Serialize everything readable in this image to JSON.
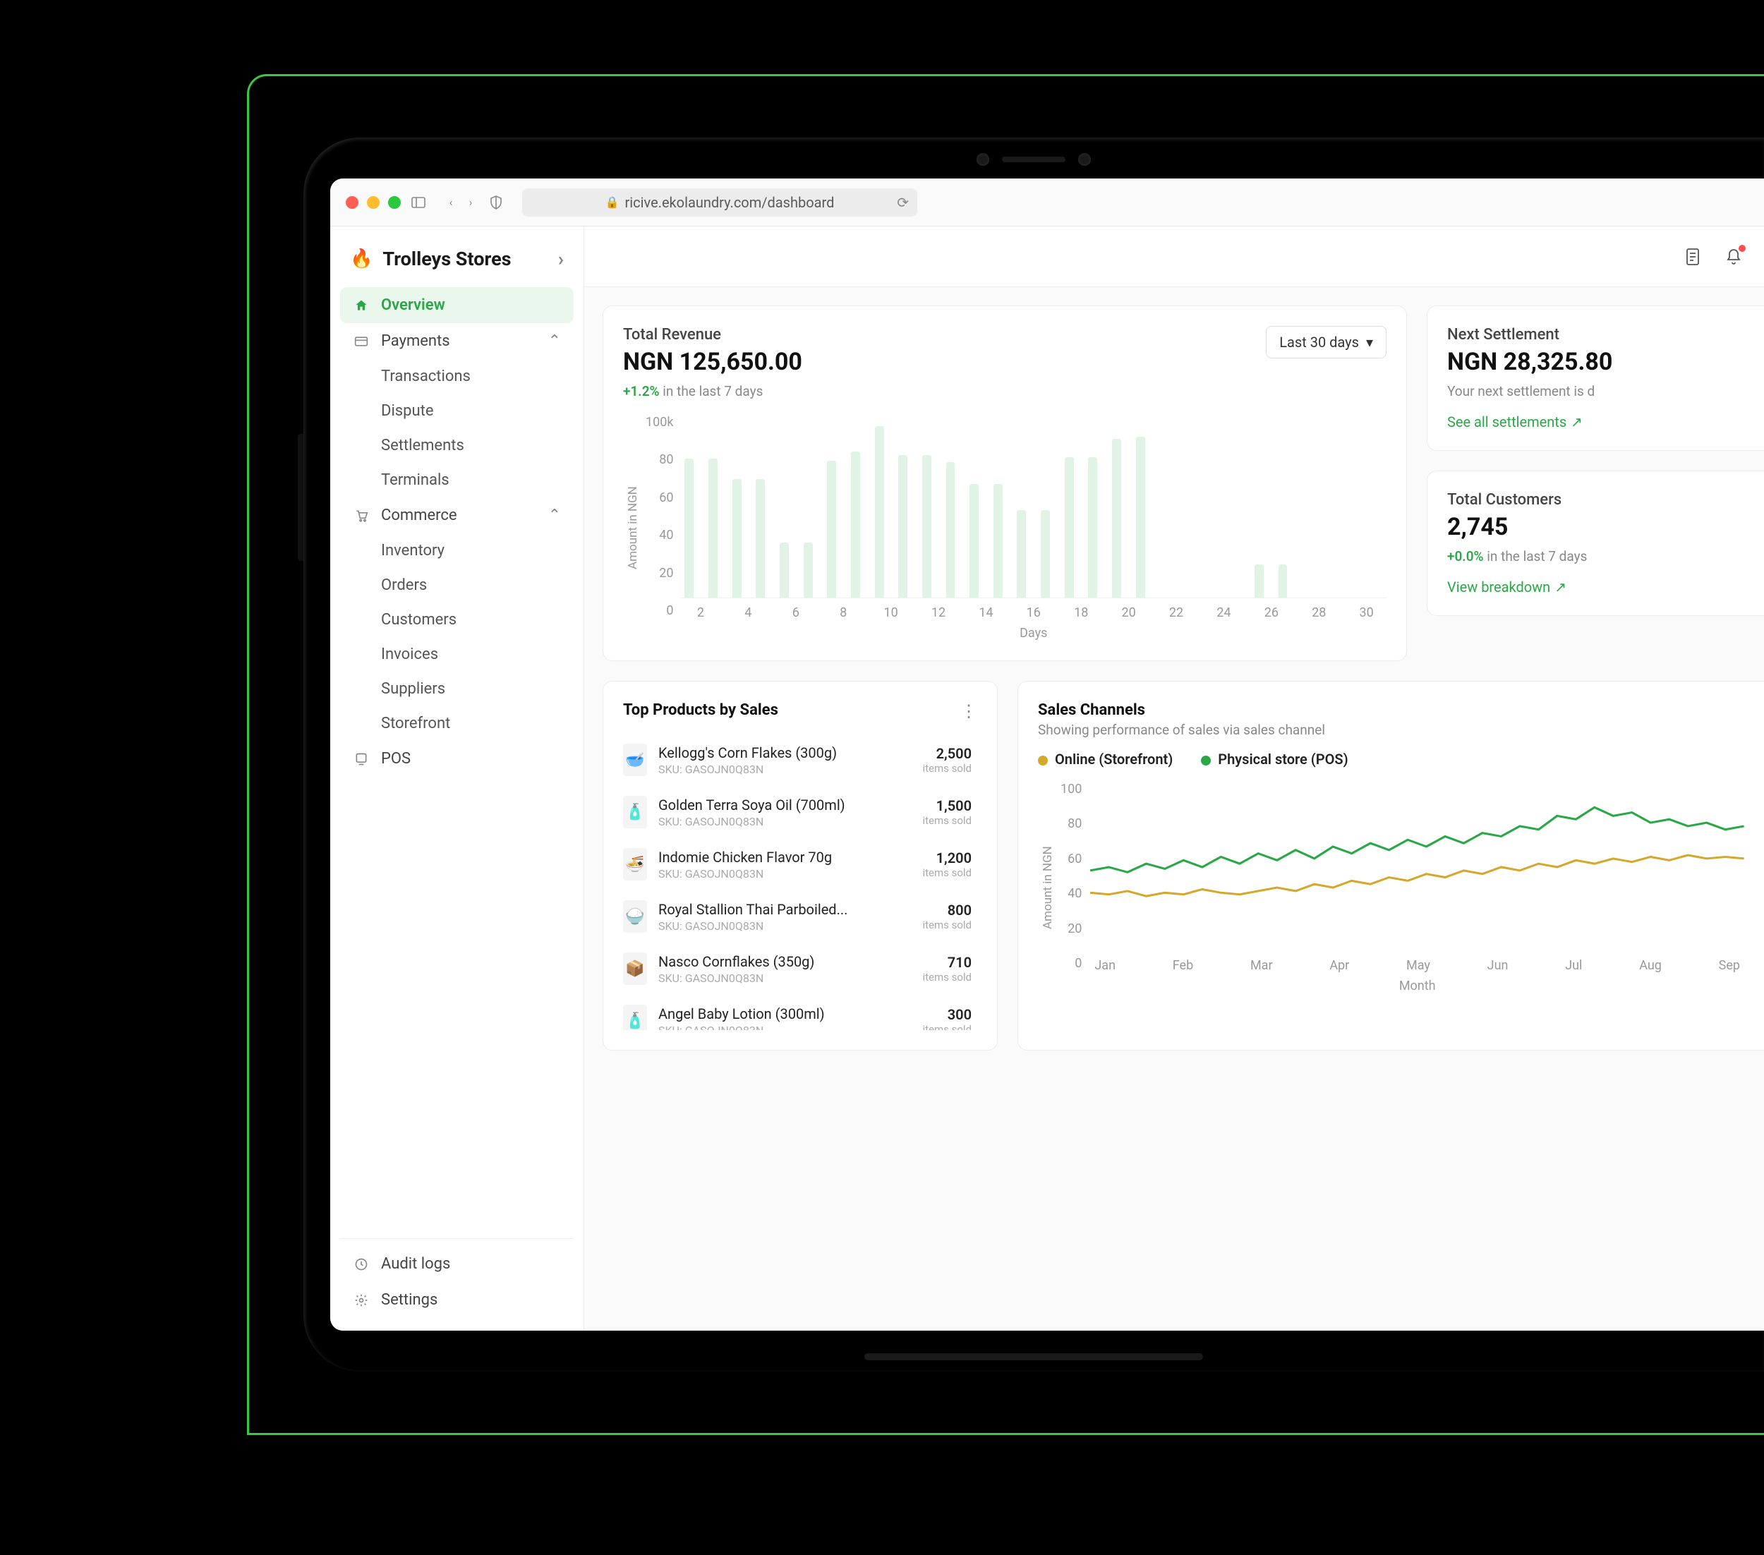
{
  "browser": {
    "url": "ricive.ekolaundry.com/dashboard"
  },
  "brand": {
    "name": "Trolleys Stores"
  },
  "sidebar": {
    "overview": "Overview",
    "payments": {
      "label": "Payments",
      "items": [
        "Transactions",
        "Dispute",
        "Settlements",
        "Terminals"
      ]
    },
    "commerce": {
      "label": "Commerce",
      "items": [
        "Inventory",
        "Orders",
        "Customers",
        "Invoices",
        "Suppliers",
        "Storefront"
      ]
    },
    "pos": "POS",
    "audit": "Audit logs",
    "settings": "Settings"
  },
  "revenue": {
    "title": "Total Revenue",
    "value": "NGN 125,650.00",
    "delta": "+1.2%",
    "delta_suffix": " in the last 7 days",
    "period": "Last 30 days",
    "ylabel": "Amount in NGN",
    "xlabel": "Days",
    "yticks": [
      "100k",
      "80",
      "60",
      "40",
      "20",
      "0"
    ],
    "xticks": [
      "2",
      "4",
      "6",
      "8",
      "10",
      "12",
      "14",
      "16",
      "18",
      "20",
      "22",
      "24",
      "26",
      "28",
      "30"
    ],
    "bars": [
      76,
      76,
      65,
      65,
      30,
      30,
      75,
      80,
      94,
      78,
      78,
      74,
      62,
      62,
      48,
      48,
      77,
      77,
      87,
      88,
      0,
      0,
      0,
      0,
      18,
      18,
      0,
      0,
      0,
      0
    ],
    "ylim": 100,
    "bar_color": "#e1f3e4"
  },
  "settlement": {
    "title": "Next Settlement",
    "value": "NGN 28,325.80",
    "desc": "Your next settlement is d",
    "link": "See all settlements"
  },
  "customers": {
    "title": "Total Customers",
    "value": "2,745",
    "delta": "+0.0%",
    "delta_suffix": " in the last 7 days",
    "link": "View breakdown"
  },
  "top_products": {
    "title": "Top Products by Sales",
    "sku_prefix": "SKU: GASOJN0Q83N",
    "unit": "items sold",
    "items": [
      {
        "name": "Kellogg's Corn Flakes (300g)",
        "qty": "2,500",
        "emoji": "🥣"
      },
      {
        "name": "Golden Terra Soya Oil (700ml)",
        "qty": "1,500",
        "emoji": "🧴"
      },
      {
        "name": "Indomie Chicken Flavor 70g",
        "qty": "1,200",
        "emoji": "🍜"
      },
      {
        "name": "Royal Stallion Thai Parboiled...",
        "qty": "800",
        "emoji": "🍚"
      },
      {
        "name": "Nasco Cornflakes (350g)",
        "qty": "710",
        "emoji": "📦"
      },
      {
        "name": "Angel Baby Lotion (300ml)",
        "qty": "300",
        "emoji": "🧴"
      }
    ]
  },
  "channels": {
    "title": "Sales Channels",
    "subtitle": "Showing performance of sales via sales channel",
    "legend": {
      "online": "Online (Storefront)",
      "physical": "Physical store (POS)"
    },
    "ylabel": "Amount in NGN",
    "xlabel": "Month",
    "yticks": [
      "100",
      "80",
      "60",
      "40",
      "20",
      "0"
    ],
    "xticks": [
      "Jan",
      "Feb",
      "Mar",
      "Apr",
      "May",
      "Jun",
      "Jul",
      "Aug",
      "Sep"
    ],
    "colors": {
      "online": "#d4a82c",
      "physical": "#2aa746"
    },
    "ylim": 100,
    "online_series": [
      35,
      34,
      36,
      33,
      35,
      34,
      37,
      35,
      34,
      36,
      38,
      36,
      40,
      38,
      42,
      40,
      44,
      42,
      46,
      44,
      48,
      46,
      50,
      48,
      52,
      50,
      54,
      52,
      55,
      53,
      56,
      54,
      57,
      55,
      56,
      55
    ],
    "physical_series": [
      48,
      50,
      47,
      52,
      49,
      54,
      50,
      56,
      52,
      58,
      54,
      60,
      55,
      62,
      58,
      64,
      60,
      66,
      62,
      68,
      64,
      70,
      68,
      74,
      72,
      80,
      78,
      85,
      80,
      82,
      76,
      78,
      74,
      76,
      72,
      74
    ]
  }
}
